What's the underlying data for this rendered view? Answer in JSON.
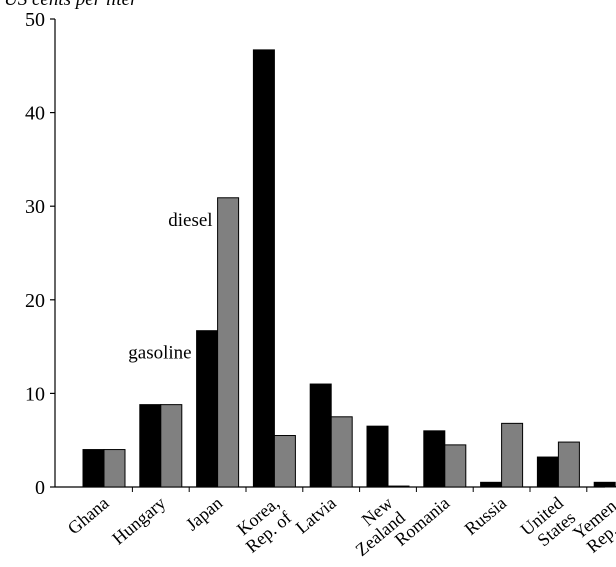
{
  "chart_data": {
    "type": "bar",
    "ylabel": "US cents per liter",
    "ylim": [
      0,
      50
    ],
    "yticks": [
      0,
      10,
      20,
      30,
      40,
      50
    ],
    "categories": [
      [
        "Ghana"
      ],
      [
        "Hungary"
      ],
      [
        "Japan"
      ],
      [
        "Korea,",
        "Rep. of"
      ],
      [
        "Latvia"
      ],
      [
        "New",
        "Zealand"
      ],
      [
        "Romania"
      ],
      [
        "Russia"
      ],
      [
        "United",
        "States"
      ],
      [
        "Yemen,",
        "Rep. of"
      ]
    ],
    "series": [
      {
        "name": "gasoline",
        "color": "#000000",
        "values": [
          4.0,
          8.8,
          16.7,
          46.7,
          11.0,
          6.5,
          6.0,
          0.5,
          3.2,
          0.5
        ]
      },
      {
        "name": "diesel",
        "color": "#808080",
        "values": [
          4.0,
          8.8,
          30.9,
          5.5,
          7.5,
          0.1,
          4.5,
          6.8,
          4.8,
          0.0
        ]
      }
    ],
    "annotations": [
      {
        "text": "gasoline",
        "series": 0,
        "category": 2
      },
      {
        "text": "diesel",
        "series": 1,
        "category": 2
      }
    ],
    "grid": false,
    "legend": "none"
  }
}
